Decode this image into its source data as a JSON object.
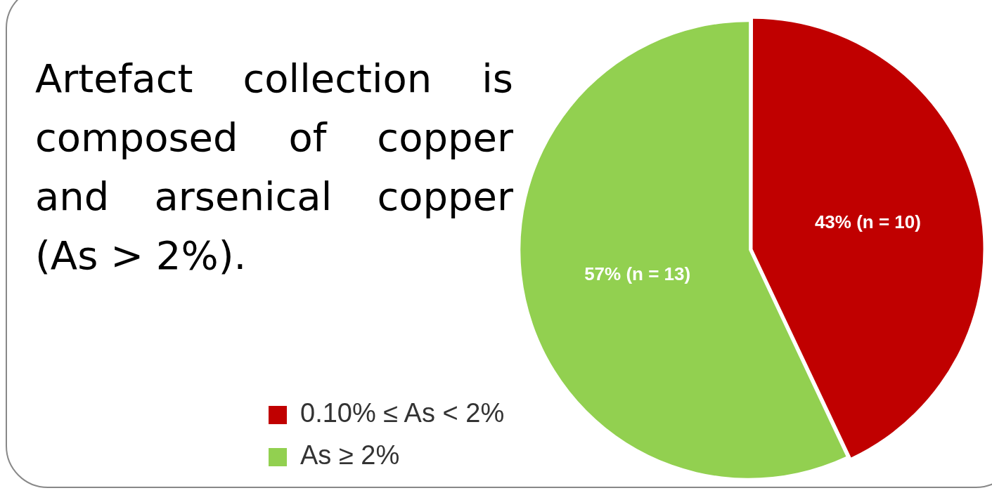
{
  "chart_data": {
    "type": "pie",
    "title": "Artefact collection is composed of copper and arsenical copper (As > 2%).",
    "categories": [
      "0.10% ≤ As < 2%",
      "As ≥ 2%"
    ],
    "values": [
      43,
      57
    ],
    "colors": [
      "#c00000",
      "#92d050"
    ],
    "value_labels": [
      "43% (n = 10)",
      "57% (n = 13)"
    ],
    "legend": "bottom left"
  }
}
